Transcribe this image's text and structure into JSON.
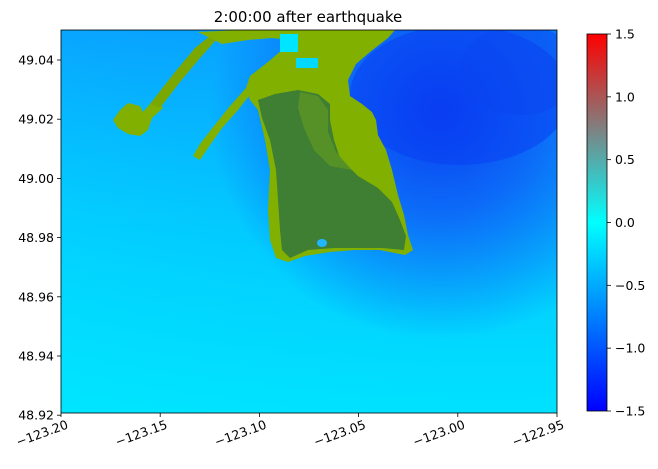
{
  "title": "2:00:00 after earthquake",
  "map": {
    "x_ticks": [
      "−123.20",
      "−123.15",
      "−123.10",
      "−123.05",
      "−123.00",
      "−122.95"
    ],
    "y_ticks": [
      "49.04",
      "49.02",
      "49.00",
      "48.98",
      "48.96",
      "48.94",
      "48.92"
    ],
    "x_range": [
      -123.2,
      -122.95
    ],
    "y_range": [
      48.92,
      49.05
    ],
    "water_colors": {
      "deep": "#0c55f4",
      "mid": "#0aa6ff",
      "shallow": "#00e6ff"
    },
    "land_colors": {
      "lowland": "#82b000",
      "upland": "#3f7f33"
    }
  },
  "colorbar": {
    "ticks": [
      "1.5",
      "1.0",
      "0.5",
      "0.0",
      "−0.5",
      "−1.0",
      "−1.5"
    ],
    "range": [
      -1.5,
      1.5
    ],
    "colors": {
      "top": "#ff0000",
      "upper": "#808080",
      "mid": "#00ffff",
      "bottom": "#0000ff"
    }
  }
}
